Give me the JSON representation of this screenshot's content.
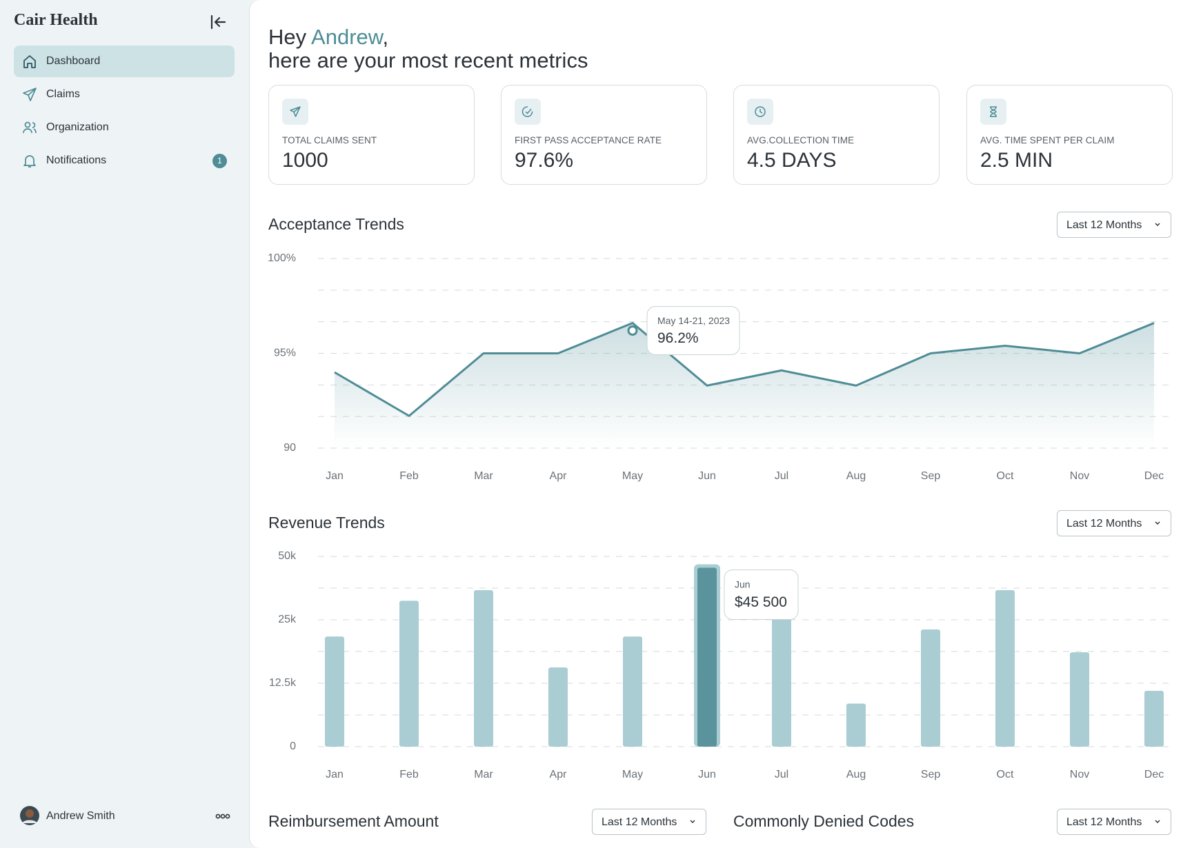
{
  "sidebar": {
    "brand": "Cair Health",
    "nav": [
      {
        "label": "Dashboard"
      },
      {
        "label": "Claims"
      },
      {
        "label": "Organization"
      },
      {
        "label": "Notifications",
        "badge": "1"
      }
    ],
    "user": "Andrew Smith"
  },
  "header": {
    "greeting": "Hey",
    "name": "Andrew",
    "punctuation": ",",
    "subtitle": "here are your most recent metrics"
  },
  "metrics": [
    {
      "label": "TOTAL CLAIMS SENT",
      "value": "1000"
    },
    {
      "label": "FIRST PASS ACCEPTANCE RATE",
      "value": "97.6%"
    },
    {
      "label": "AVG.COLLECTION TIME",
      "value": "4.5 DAYS"
    },
    {
      "label": "AVG. TIME SPENT PER CLAIM",
      "value": "2.5 MIN"
    }
  ],
  "chart_data": [
    {
      "type": "line",
      "title": "Acceptance Trends",
      "filter": "Last 12 Months",
      "categories": [
        "Jan",
        "Feb",
        "Mar",
        "Apr",
        "May",
        "Jun",
        "Jul",
        "Aug",
        "Sep",
        "Oct",
        "Nov",
        "Dec"
      ],
      "values": [
        94.0,
        91.7,
        95.0,
        95.0,
        96.6,
        93.3,
        94.1,
        93.3,
        95.0,
        95.4,
        95.0,
        96.6
      ],
      "color": "#4e8c96",
      "ylim": [
        90,
        100
      ],
      "yticks": [
        90,
        {
          "value": 95,
          "label": "95%"
        },
        {
          "value": 100,
          "label": "100%"
        }
      ],
      "grid": true,
      "tooltip": {
        "title": "May 14-21, 2023",
        "value": 96.2,
        "label": "96.2%"
      }
    },
    {
      "type": "bar",
      "title": "Revenue Trends",
      "filter": "Last 12 Months",
      "categories": [
        "Jan",
        "Feb",
        "Mar",
        "Apr",
        "May",
        "Jun",
        "Jul",
        "Aug",
        "Sep",
        "Oct",
        "Nov",
        "Dec"
      ],
      "values": [
        21700,
        32500,
        36700,
        15600,
        21700,
        45500,
        29000,
        8500,
        23100,
        36700,
        18600,
        11000
      ],
      "color": "#a9cdd3",
      "highlight_color": "#5a939c",
      "ylim": [
        0,
        50000
      ],
      "yticks": [
        0,
        {
          "value": 12500,
          "label": "12.5k"
        },
        {
          "value": 25000,
          "label": "25k"
        },
        {
          "value": 50000,
          "label": "50k"
        }
      ],
      "grid": true,
      "tooltip": {
        "title": "Jun",
        "value": 45500,
        "label": "$45 500"
      }
    }
  ],
  "sections": [
    {
      "title": "Reimbursement Amount",
      "filter": "Last 12 Months"
    },
    {
      "title": "Commonly Denied Codes",
      "filter": "Last 12 Months"
    }
  ]
}
